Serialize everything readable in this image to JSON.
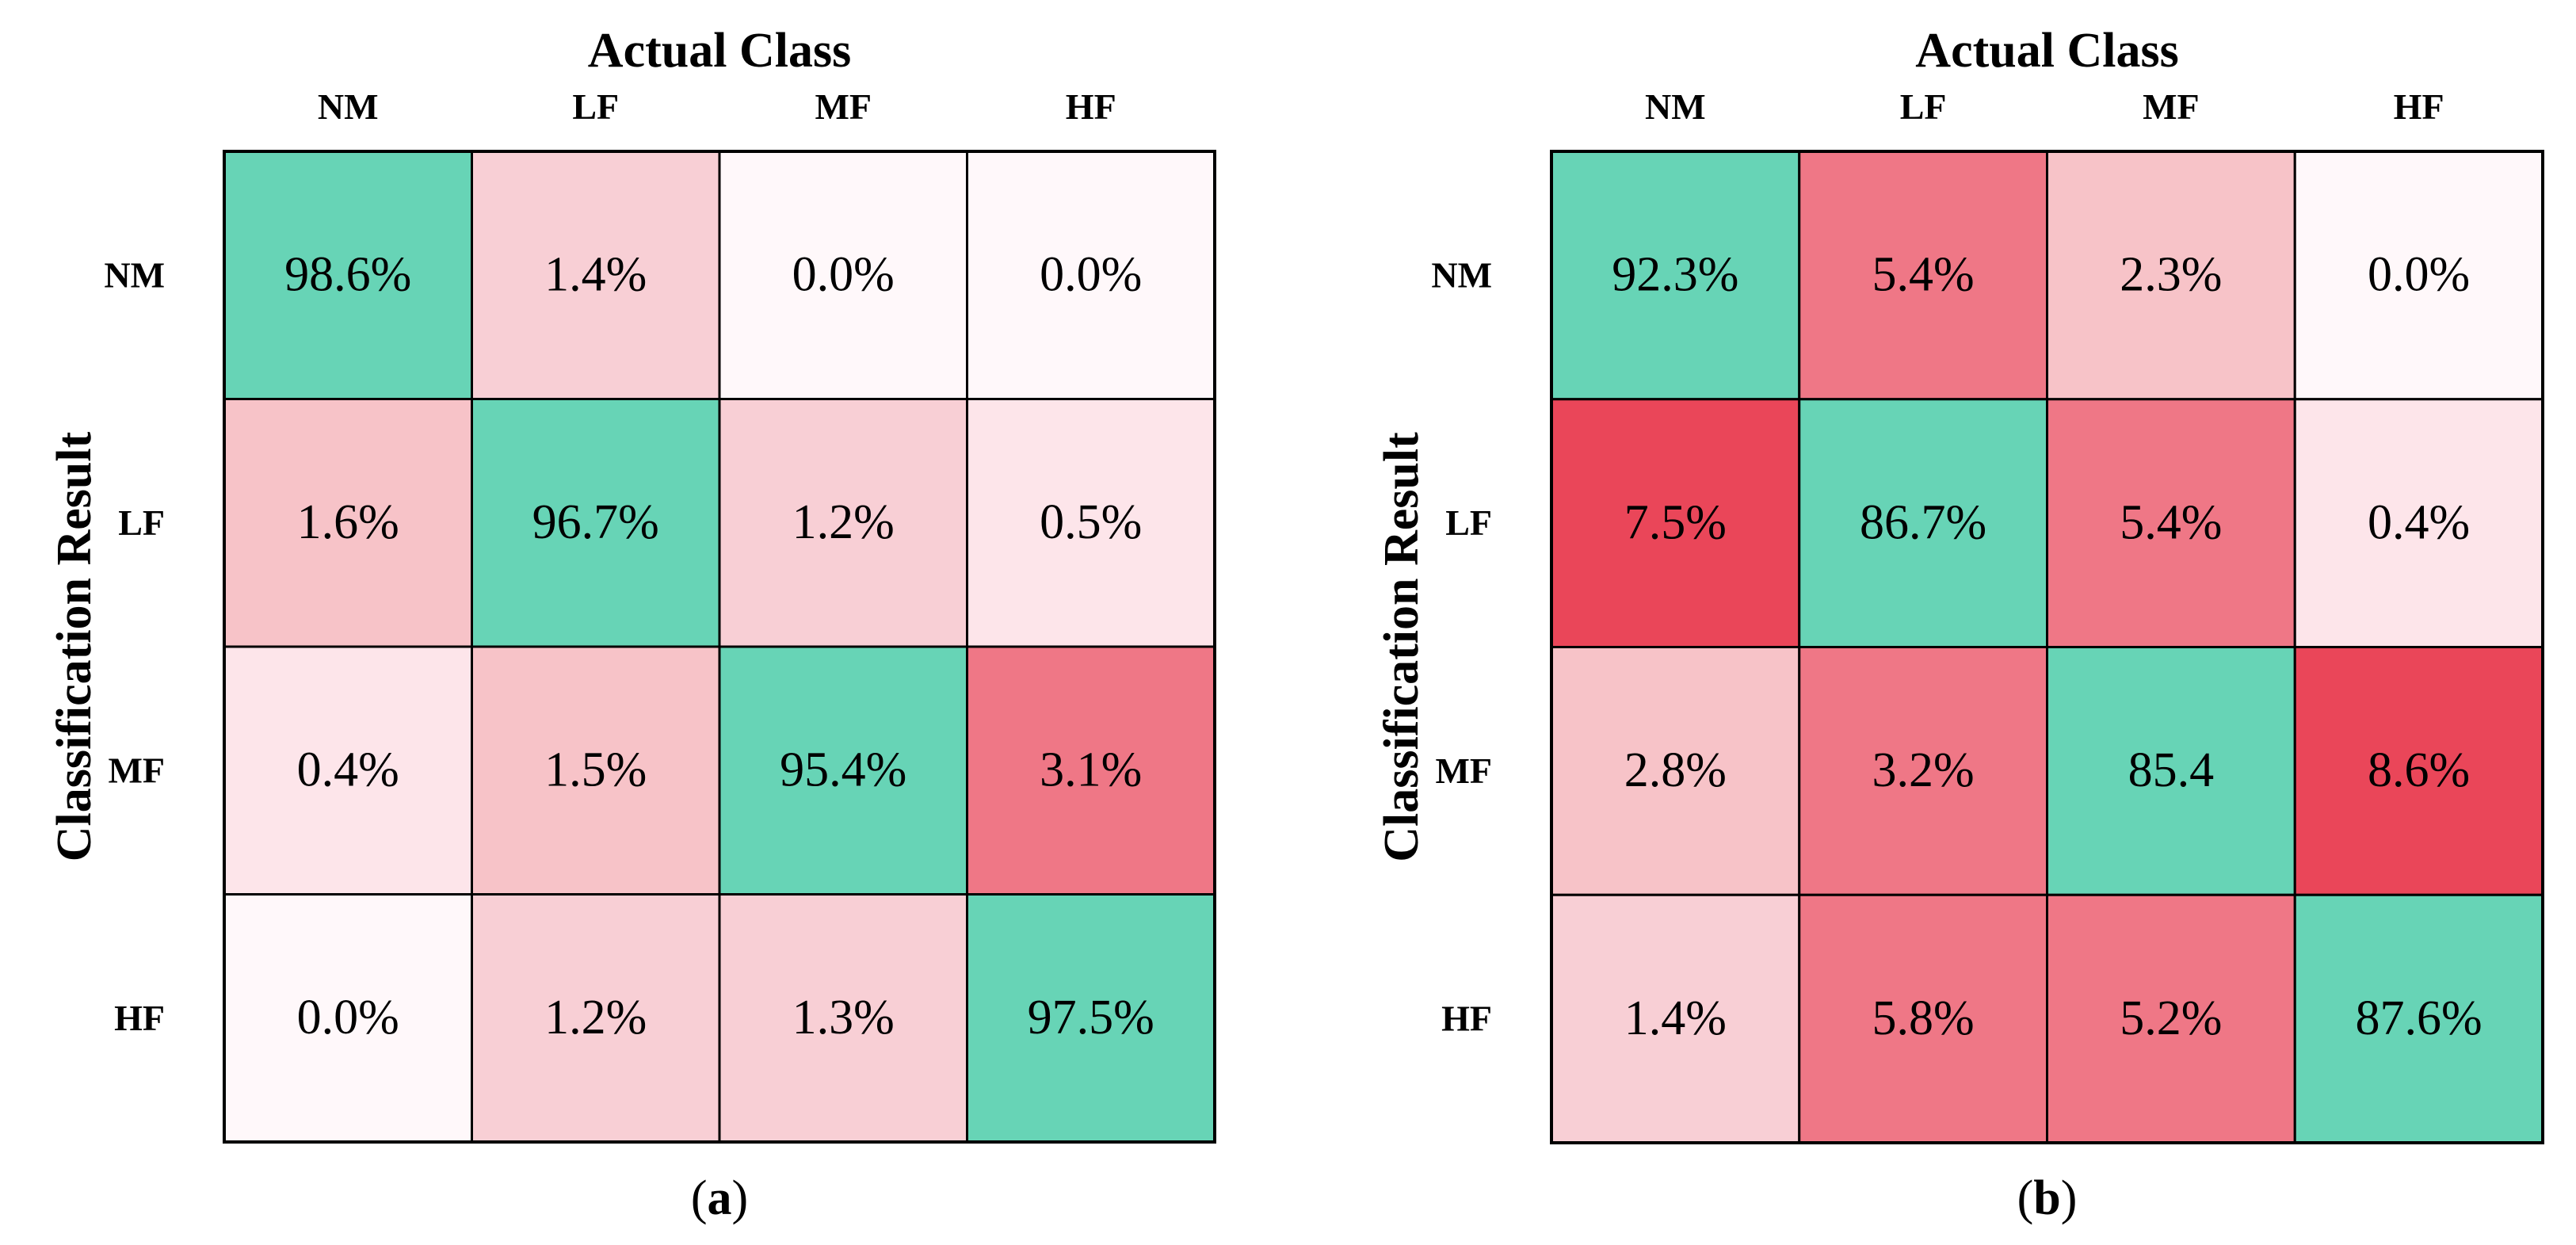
{
  "chart_data": [
    {
      "type": "heatmap",
      "panel_label": "(a)",
      "x_axis_title": "Actual Class",
      "y_axis_title": "Classification Result",
      "x_categories": [
        "NM",
        "LF",
        "MF",
        "HF"
      ],
      "y_categories": [
        "NM",
        "LF",
        "MF",
        "HF"
      ],
      "values": [
        [
          98.6,
          1.4,
          0.0,
          0.0
        ],
        [
          1.6,
          96.7,
          1.2,
          0.5
        ],
        [
          0.4,
          1.5,
          95.4,
          3.1
        ],
        [
          0.0,
          1.2,
          1.3,
          97.5
        ]
      ],
      "cell_labels": [
        [
          "98.6%",
          "1.4%",
          "0.0%",
          "0.0%"
        ],
        [
          "1.6%",
          "96.7%",
          "1.2%",
          "0.5%"
        ],
        [
          "0.4%",
          "1.5%",
          "95.4%",
          "3.1%"
        ],
        [
          "0.0%",
          "1.2%",
          "1.3%",
          "97.5%"
        ]
      ]
    },
    {
      "type": "heatmap",
      "panel_label": "(b)",
      "x_axis_title": "Actual Class",
      "y_axis_title": "Classification Result",
      "x_categories": [
        "NM",
        "LF",
        "MF",
        "HF"
      ],
      "y_categories": [
        "NM",
        "LF",
        "MF",
        "HF"
      ],
      "values": [
        [
          92.3,
          5.4,
          2.3,
          0.0
        ],
        [
          7.5,
          86.7,
          5.4,
          0.4
        ],
        [
          2.8,
          3.2,
          85.4,
          8.6
        ],
        [
          1.4,
          5.8,
          5.2,
          87.6
        ]
      ],
      "cell_labels": [
        [
          "92.3%",
          "5.4%",
          "2.3%",
          "0.0%"
        ],
        [
          "7.5%",
          "86.7%",
          "5.4%",
          "0.4%"
        ],
        [
          "2.8%",
          "3.2%",
          "85.4",
          "8.6%"
        ],
        [
          "1.4%",
          "5.8%",
          "5.2%",
          "87.6%"
        ]
      ]
    }
  ],
  "colors": {
    "diagonal": "#67d4b6",
    "off_diag_strong": "#ea4659",
    "off_diag_medium": "#ef7786",
    "off_diag_light": "#f7c3c8",
    "off_diag_pale": "#f8cfd5",
    "off_diag_faint": "#fde5ea",
    "off_diag_blank": "#fff8fa",
    "grid_line": "#000000"
  }
}
